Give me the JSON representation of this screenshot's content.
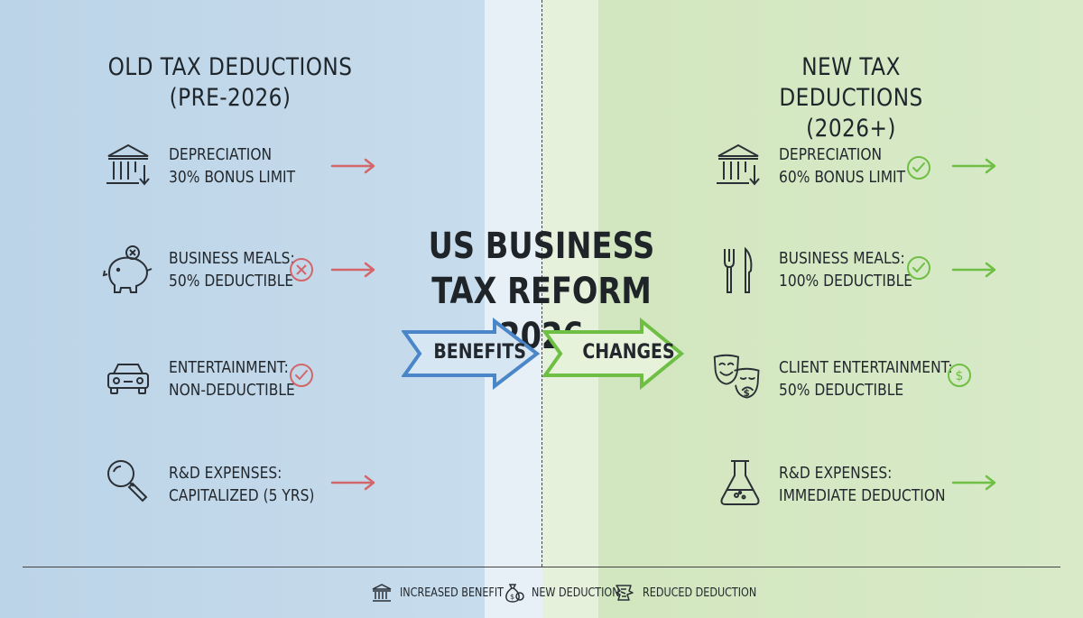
{
  "left_column": {
    "title_line1": "OLD TAX DEDUCTIONS",
    "title_line2": "(PRE-2026)",
    "items": [
      {
        "icon": "bank-down-icon",
        "line1": "DEPRECIATION",
        "line2": "30% BONUS LIMIT",
        "status": "none"
      },
      {
        "icon": "piggy-bank-icon",
        "line1": "BUSINESS MEALS:",
        "line2": "50% DEDUCTIBLE",
        "status": "x"
      },
      {
        "icon": "car-icon",
        "line1": "ENTERTAINMENT:",
        "line2": "NON-DEDUCTIBLE",
        "status": "check"
      },
      {
        "icon": "magnifier-icon",
        "line1": "R&D EXPENSES:",
        "line2": "CAPITALIZED (5 YRS)",
        "status": "none"
      }
    ]
  },
  "right_column": {
    "title_line1": "NEW TAX DEDUCTIONS",
    "title_line2": "(2026+)",
    "items": [
      {
        "icon": "bank-down-icon",
        "line1": "DEPRECIATION",
        "line2": "60% BONUS LIMIT",
        "status": "check"
      },
      {
        "icon": "fork-knife-icon",
        "line1": "BUSINESS MEALS:",
        "line2": "100% DEDUCTIBLE",
        "status": "check"
      },
      {
        "icon": "theater-masks-icon",
        "line1": "CLIENT ENTERTAINMENT:",
        "line2": "50% DEDUCTIBLE",
        "status": "dollar"
      },
      {
        "icon": "flask-icon",
        "line1": "R&D EXPENSES:",
        "line2": "IMMEDIATE DEDUCTION",
        "status": "none"
      }
    ]
  },
  "center": {
    "title_line1": "US BUSINESS",
    "title_line2": "TAX REFORM 2026",
    "arrow_left_label": "BENEFITS",
    "arrow_right_label": "CHANGES"
  },
  "legend": {
    "items": [
      {
        "icon": "bank-icon",
        "label": "INCREASED BENEFIT"
      },
      {
        "icon": "money-bag-icon",
        "label": "NEW DEDUCTION"
      },
      {
        "icon": "receipt-icon",
        "label": "REDUCED DEDUCTION"
      }
    ]
  },
  "colors": {
    "left_bg": "#c3d9ec",
    "right_bg": "#d4e8c2",
    "red_arrow": "#d2666a",
    "green_arrow": "#6fbf45",
    "blue_outline": "#4a86c8",
    "ink": "#22282d"
  }
}
